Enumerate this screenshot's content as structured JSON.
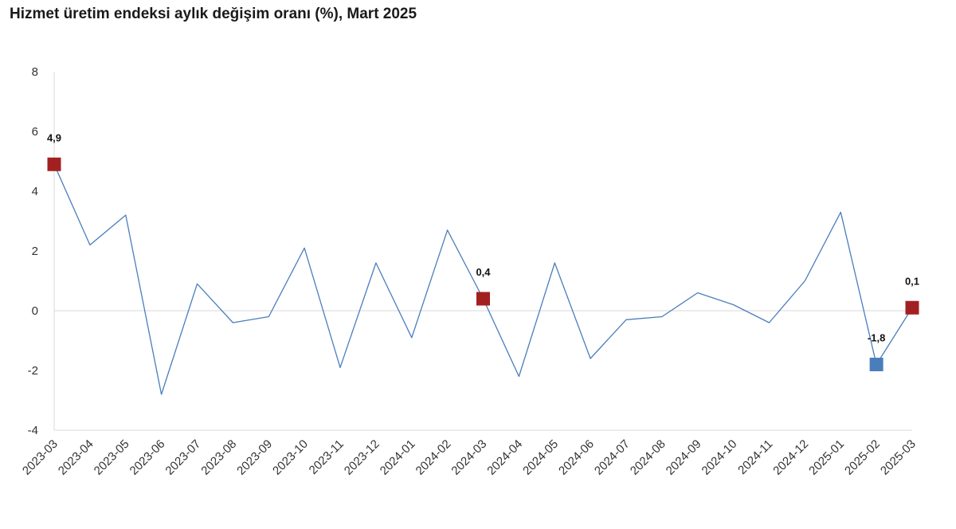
{
  "chart_data": {
    "type": "line",
    "title": "Hizmet üretim endeksi aylık değişim oranı (%), Mart 2025",
    "xlabel": "",
    "ylabel": "",
    "categories": [
      "2023-03",
      "2023-04",
      "2023-05",
      "2023-06",
      "2023-07",
      "2023-08",
      "2023-09",
      "2023-10",
      "2023-11",
      "2023-12",
      "2024-01",
      "2024-02",
      "2024-03",
      "2024-04",
      "2024-05",
      "2024-06",
      "2024-07",
      "2024-08",
      "2024-09",
      "2024-10",
      "2024-11",
      "2024-12",
      "2025-01",
      "2025-02",
      "2025-03"
    ],
    "series": [
      {
        "values": [
          4.9,
          2.2,
          3.2,
          -2.8,
          0.9,
          -0.4,
          -0.2,
          2.1,
          -1.9,
          1.6,
          -0.9,
          2.7,
          0.4,
          -2.2,
          1.6,
          -1.6,
          -0.3,
          -0.2,
          0.6,
          0.2,
          -0.4,
          1.0,
          3.3,
          -1.8,
          0.1
        ],
        "color": "#4a7ebb"
      }
    ],
    "ylim": [
      -4,
      8
    ],
    "yticks": [
      -4,
      -2,
      0,
      2,
      4,
      6,
      8
    ],
    "highlights": [
      {
        "category": "2023-03",
        "label": "4,9",
        "color": "#a32020"
      },
      {
        "category": "2024-03",
        "label": "0,4",
        "color": "#a32020"
      },
      {
        "category": "2025-02",
        "label": "-1,8",
        "color": "#4a7ebb"
      },
      {
        "category": "2025-03",
        "label": "0,1",
        "color": "#a32020"
      }
    ],
    "grid": false,
    "legend": "none"
  }
}
